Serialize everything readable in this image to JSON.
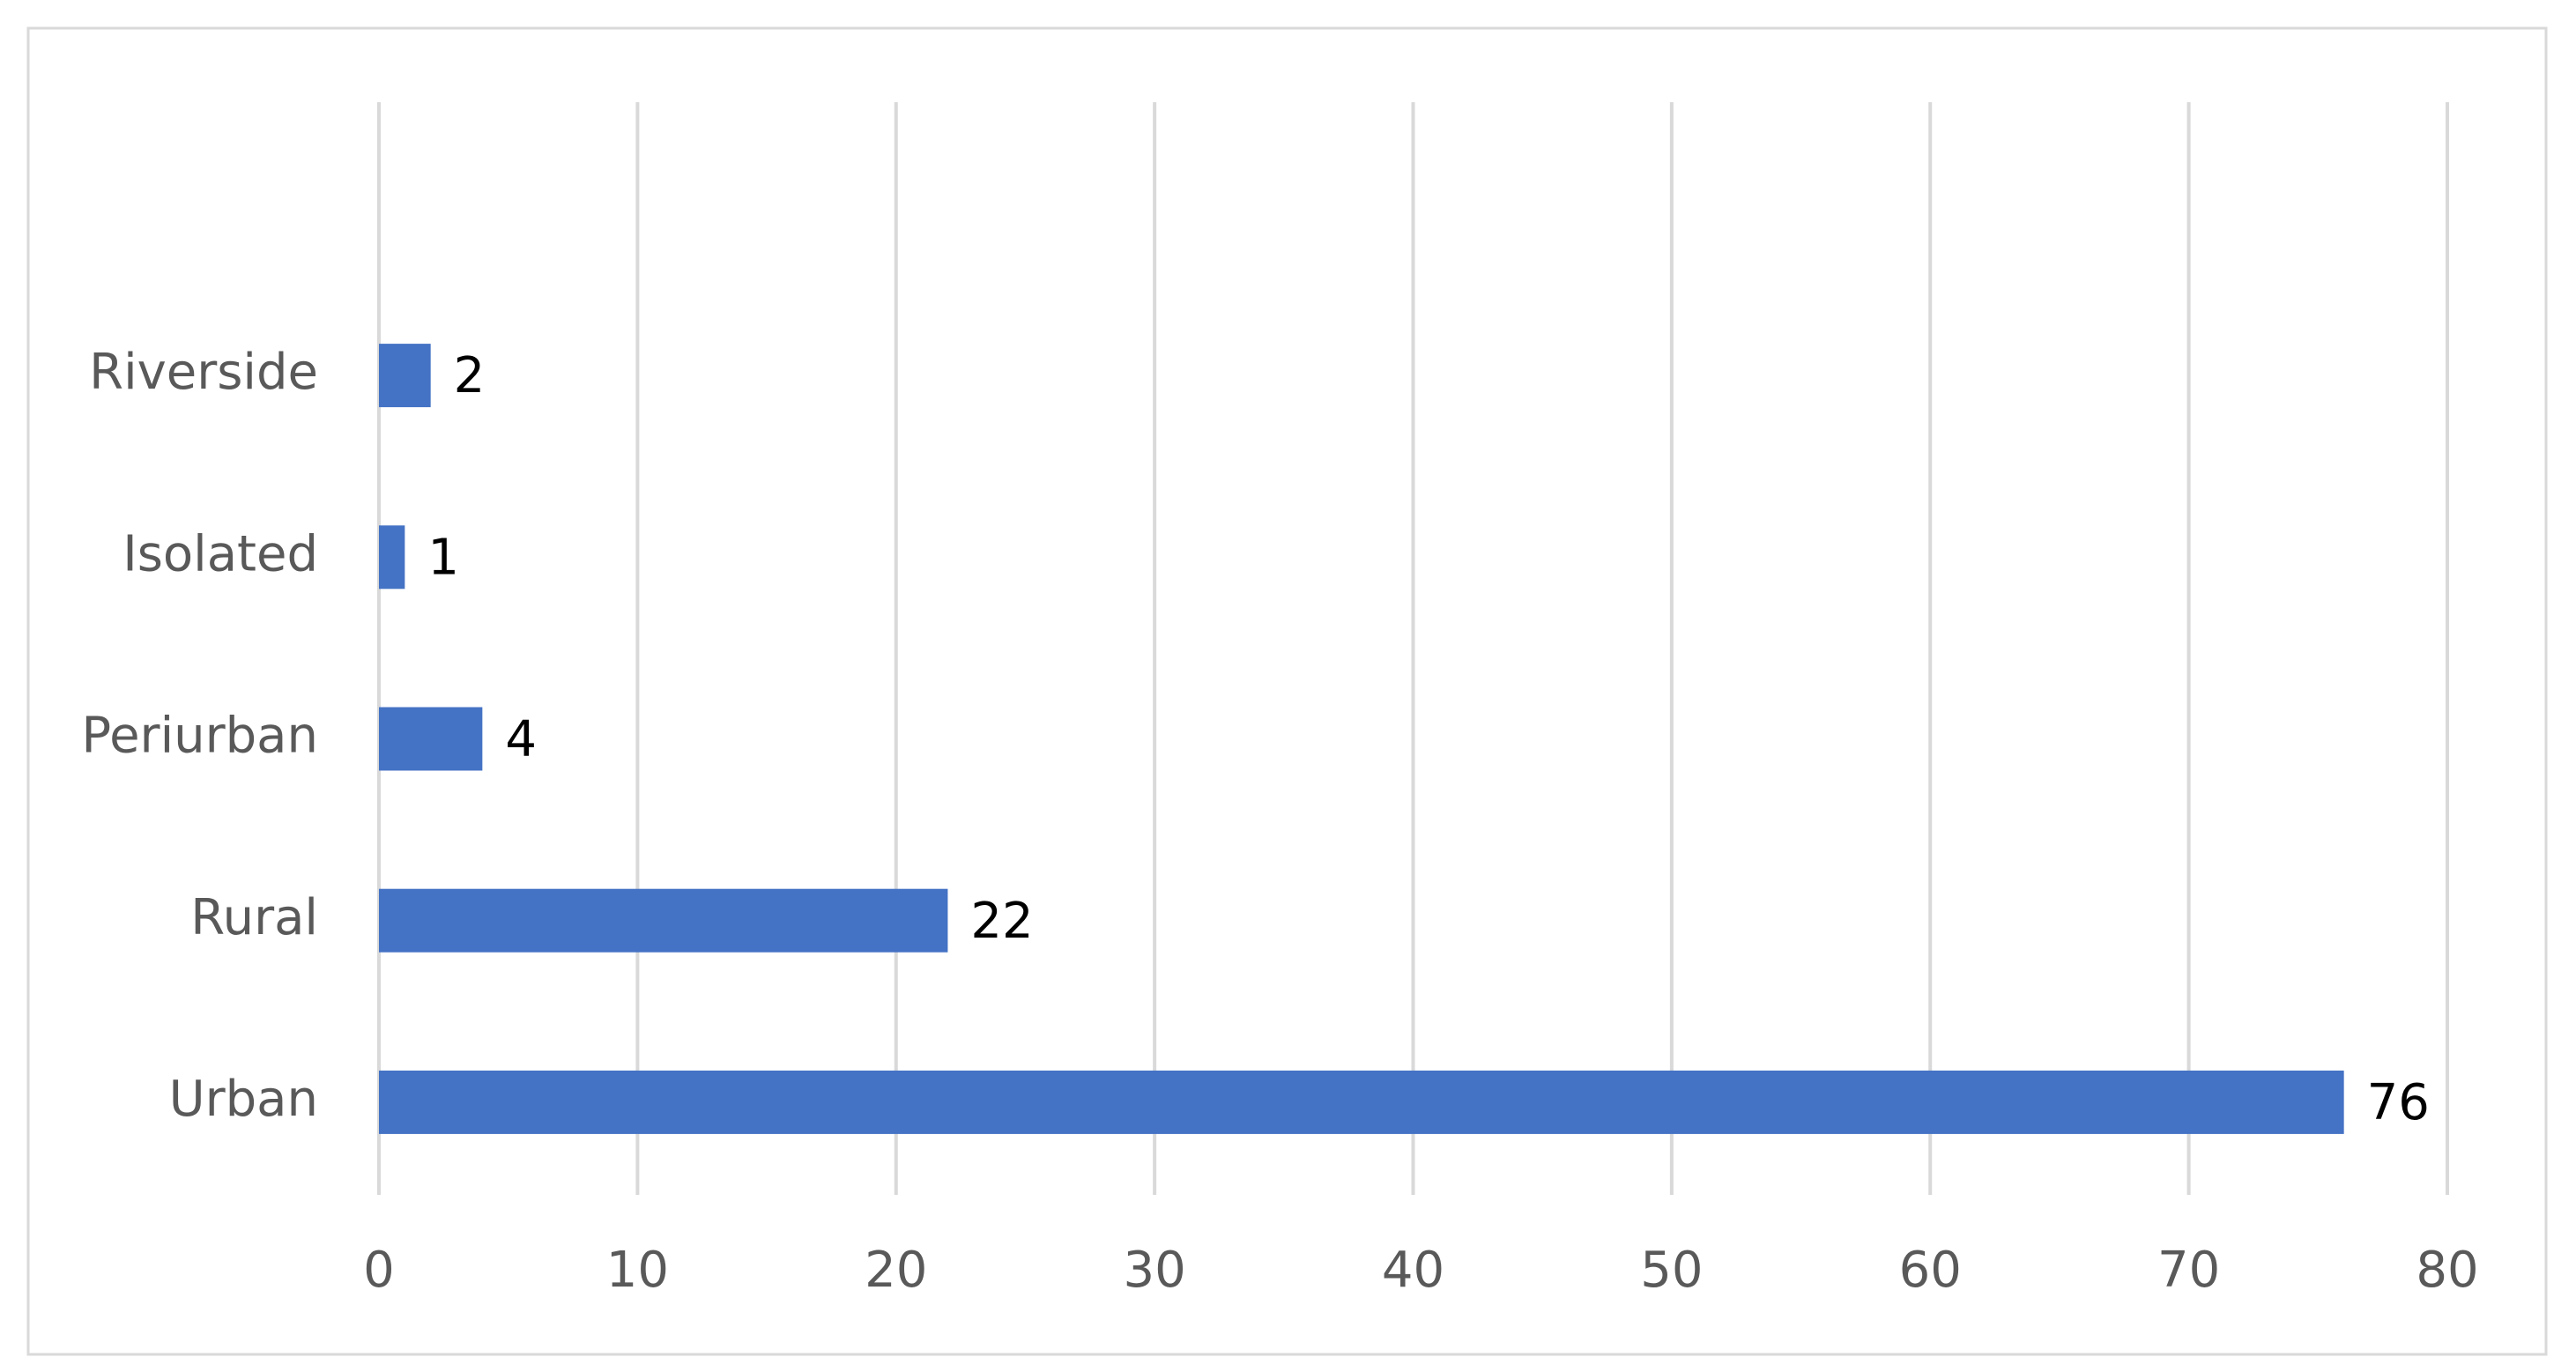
{
  "chart_data": {
    "type": "bar",
    "orientation": "horizontal",
    "categories": [
      "Riverside",
      "Isolated",
      "Periurban",
      "Rural",
      "Urban"
    ],
    "values": [
      2,
      1,
      4,
      22,
      76
    ],
    "color": "#4472c4",
    "xlim": [
      0,
      80
    ],
    "xticks": [
      0,
      10,
      20,
      30,
      40,
      50,
      60,
      70,
      80
    ],
    "grid": true
  }
}
